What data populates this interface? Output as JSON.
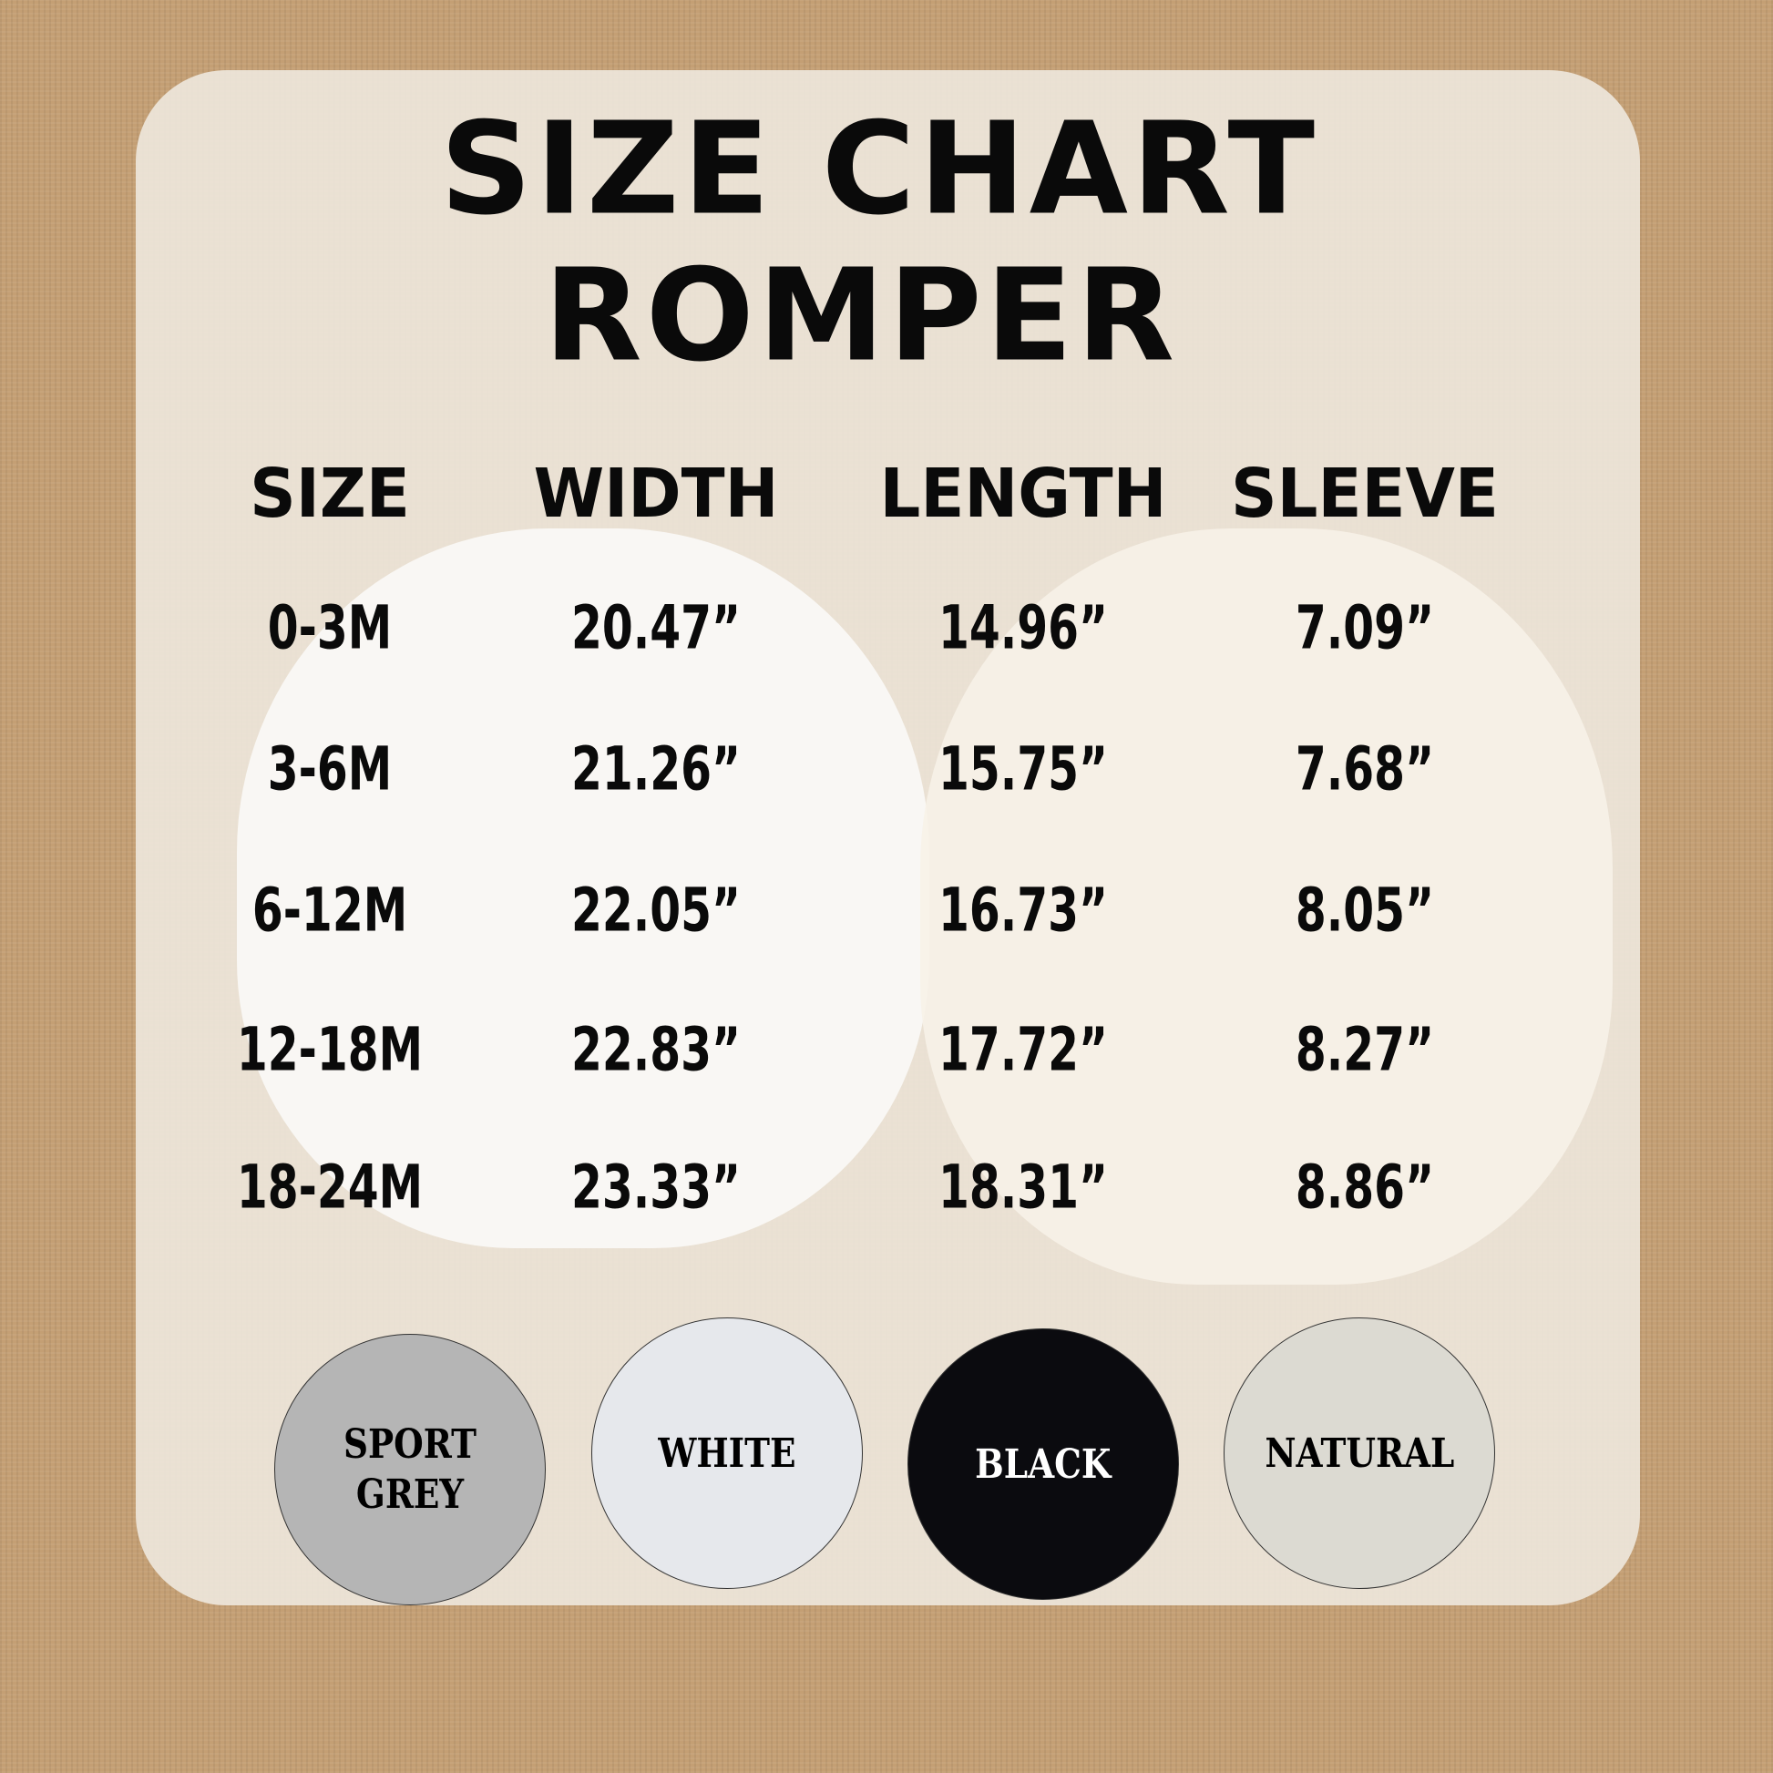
{
  "title": {
    "line1": "SIZE CHART",
    "line2": "ROMPER"
  },
  "headers": [
    "SIZE",
    "WIDTH",
    "LENGTH",
    "SLEEVE"
  ],
  "rows": [
    [
      "0-3M",
      "20.47”",
      "14.96”",
      "7.09”"
    ],
    [
      "3-6M",
      "21.26”",
      "15.75”",
      "7.68”"
    ],
    [
      "6-12M",
      "22.05”",
      "16.73”",
      "8.05”"
    ],
    [
      "12-18M",
      "22.83”",
      "17.72”",
      "8.27”"
    ],
    [
      "18-24M",
      "23.33”",
      "18.31”",
      "8.86”"
    ]
  ],
  "colors": [
    {
      "label": "SPORT GREY",
      "hex": "#b5b5b5",
      "text": "#000000"
    },
    {
      "label": "WHITE",
      "hex": "#e6e8ec",
      "text": "#000000"
    },
    {
      "label": "BLACK",
      "hex": "#0b0b0f",
      "text": "#ffffff"
    },
    {
      "label": "NATURAL",
      "hex": "#dcdad2",
      "text": "#000000"
    }
  ]
}
